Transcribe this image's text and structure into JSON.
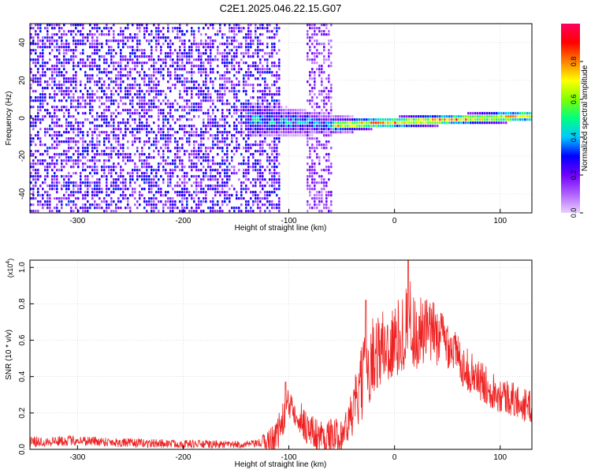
{
  "title": "C2E1.2025.046.22.15.G07",
  "chart_data": [
    {
      "type": "heatmap",
      "xlabel": "Height of straight line (km)",
      "ylabel": "Frequency (Hz)",
      "xlim": [
        -345,
        130
      ],
      "ylim": [
        -50,
        50
      ],
      "xticks": [
        -300,
        -200,
        -100,
        0,
        100
      ],
      "xtick_labels": [
        "-300",
        "-200",
        "-100",
        "0",
        "100"
      ],
      "yticks": [
        -40,
        -20,
        0,
        20,
        40
      ],
      "ytick_labels": [
        "-40",
        "-20",
        "0",
        "20",
        "40"
      ],
      "colorbar": {
        "label": "Normalized spectral amplitude",
        "range": [
          0,
          1
        ],
        "ticks": [
          0.0,
          0.2,
          0.4,
          0.6,
          0.8
        ],
        "tick_labels": [
          "0.0",
          "0.2",
          "0.4",
          "0.6",
          "0.8"
        ],
        "colormap": [
          "#e8d0ff",
          "#b060ff",
          "#7000ff",
          "#0000ff",
          "#00c8ff",
          "#00ff80",
          "#80ff00",
          "#ffff00",
          "#ff8000",
          "#ff0000",
          "#ff0060"
        ]
      },
      "features": [
        {
          "region": "noise",
          "x": [
            -345,
            -110
          ],
          "y": [
            -50,
            50
          ],
          "amplitude": 0.12
        },
        {
          "region": "noise",
          "x": [
            -85,
            -60
          ],
          "y": [
            -50,
            50
          ],
          "amplitude": 0.08
        },
        {
          "region": "spread signal",
          "x": [
            -140,
            -40
          ],
          "freq_center": 0,
          "freq_end": -3,
          "width": 10,
          "amplitude": 0.35
        },
        {
          "region": "tone",
          "x": [
            -60,
            130
          ],
          "freq_start": -3,
          "freq_end": 2,
          "width": 3,
          "amplitude": 0.85
        }
      ],
      "grid": true
    },
    {
      "type": "line",
      "xlabel": "Height of straight line (km)",
      "ylabel": "SNR (10 * v/v)",
      "scale_label": "(x10",
      "scale_exp": "4",
      "scale_close": ")",
      "xlim": [
        -345,
        130
      ],
      "ylim": [
        0,
        1.04
      ],
      "xticks": [
        -300,
        -200,
        -100,
        0,
        100
      ],
      "xtick_labels": [
        "-300",
        "-200",
        "-100",
        "0",
        "100"
      ],
      "yticks": [
        0.0,
        0.2,
        0.4,
        0.6,
        0.8,
        1.0
      ],
      "ytick_labels": [
        "0.0",
        "0.2",
        "0.4",
        "0.6",
        "0.8",
        "1.0"
      ],
      "color": "#ee2222",
      "grid": true,
      "envelope": {
        "x": [
          -345,
          -300,
          -250,
          -200,
          -150,
          -130,
          -115,
          -108,
          -102,
          -97,
          -90,
          -80,
          -70,
          -55,
          -45,
          -35,
          -28,
          -20,
          -12,
          -5,
          0,
          5,
          10,
          13,
          16,
          20,
          25,
          35,
          45,
          55,
          65,
          80,
          95,
          110,
          120,
          130
        ],
        "y": [
          0.04,
          0.05,
          0.035,
          0.03,
          0.025,
          0.03,
          0.06,
          0.12,
          0.22,
          0.26,
          0.18,
          0.1,
          0.07,
          0.07,
          0.12,
          0.28,
          0.42,
          0.52,
          0.56,
          0.56,
          0.58,
          0.62,
          0.66,
          0.74,
          0.7,
          0.62,
          0.64,
          0.64,
          0.62,
          0.56,
          0.46,
          0.38,
          0.32,
          0.28,
          0.25,
          0.23
        ]
      },
      "noise_amplitude": {
        "x": [
          -345,
          -130,
          -110,
          -45,
          -30,
          20,
          60,
          130
        ],
        "y": [
          0.03,
          0.02,
          0.1,
          0.1,
          0.22,
          0.22,
          0.12,
          0.09
        ]
      },
      "peaks": [
        {
          "x": 13,
          "y": 1.04
        },
        {
          "x": -27,
          "y": 0.82
        },
        {
          "x": -103,
          "y": 0.37
        }
      ]
    }
  ]
}
